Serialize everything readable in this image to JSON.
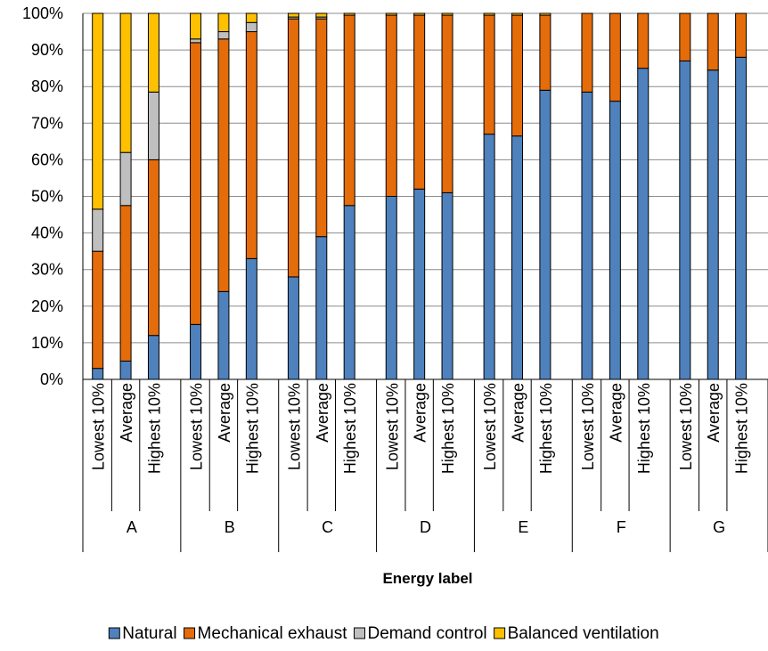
{
  "chart_data": {
    "type": "bar",
    "stacked": true,
    "normalized_100_percent": true,
    "xlabel": "Energy label",
    "ylabel": "",
    "ylim": [
      0,
      100
    ],
    "y_ticks": [
      "0%",
      "10%",
      "20%",
      "30%",
      "40%",
      "50%",
      "60%",
      "70%",
      "80%",
      "90%",
      "100%"
    ],
    "grid": "horizontal",
    "legend_position": "bottom",
    "groups": [
      "A",
      "B",
      "C",
      "D",
      "E",
      "F",
      "G"
    ],
    "subcategories": [
      "Lowest 10%",
      "Average",
      "Highest 10%"
    ],
    "series": [
      {
        "name": "Natural",
        "color": "#4f81bd",
        "values": [
          3,
          5,
          12,
          15,
          24,
          33,
          28,
          39,
          47.5,
          50,
          52,
          51,
          67,
          66.5,
          79,
          78.5,
          76,
          85,
          87,
          84.5,
          88
        ]
      },
      {
        "name": "Mechanical exhaust",
        "color": "#e46c0a",
        "values": [
          32,
          42.5,
          48,
          77,
          69,
          62,
          70.5,
          59.5,
          52,
          49.5,
          47.5,
          48.5,
          32.5,
          33,
          20.5,
          21.5,
          24,
          15,
          13,
          15.5,
          12
        ]
      },
      {
        "name": "Demand control",
        "color": "#bfbfbf",
        "values": [
          11.5,
          14.5,
          18.5,
          1,
          2,
          2.5,
          0.5,
          0.5,
          0,
          0,
          0,
          0,
          0,
          0,
          0,
          0,
          0,
          0,
          0,
          0,
          0
        ]
      },
      {
        "name": "Balanced ventilation",
        "color": "#ffc000",
        "values": [
          53.5,
          38,
          21.5,
          7,
          5,
          2.5,
          1,
          1,
          0.5,
          0.5,
          0.5,
          0.5,
          0.5,
          0.5,
          0.5,
          0,
          0,
          0,
          0,
          0,
          0
        ]
      }
    ]
  }
}
